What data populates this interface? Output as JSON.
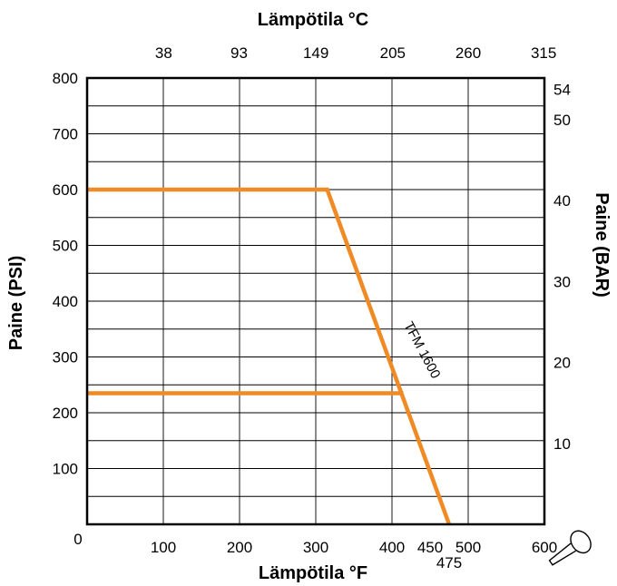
{
  "chart_data": {
    "type": "line",
    "title": "",
    "xlabel": "Lämpötila °F",
    "x2label": "Lämpötila °C",
    "ylabel": "Paine (PSI)",
    "y2label": "Paine (BAR)",
    "xlim": [
      0,
      600
    ],
    "ylim": [
      0,
      800
    ],
    "grid": true,
    "x_ticks": [
      "0",
      "100",
      "200",
      "300",
      "400",
      "450",
      "500",
      "600"
    ],
    "x_extra_tick": "475",
    "x2_ticks": [
      "38",
      "93",
      "149",
      "205",
      "260",
      "315"
    ],
    "y_ticks": [
      "100",
      "200",
      "300",
      "400",
      "500",
      "600",
      "700",
      "800"
    ],
    "y2_ticks": [
      "10",
      "20",
      "30",
      "40",
      "50",
      "54"
    ],
    "series": [
      {
        "name": "TFM 1600",
        "x": [
          0,
          315,
          475
        ],
        "y": [
          600,
          600,
          0
        ]
      },
      {
        "name": "",
        "x": [
          0,
          415
        ],
        "y": [
          235,
          235
        ]
      }
    ],
    "colors": {
      "series": "#f08a24",
      "grid": "#000000"
    }
  }
}
